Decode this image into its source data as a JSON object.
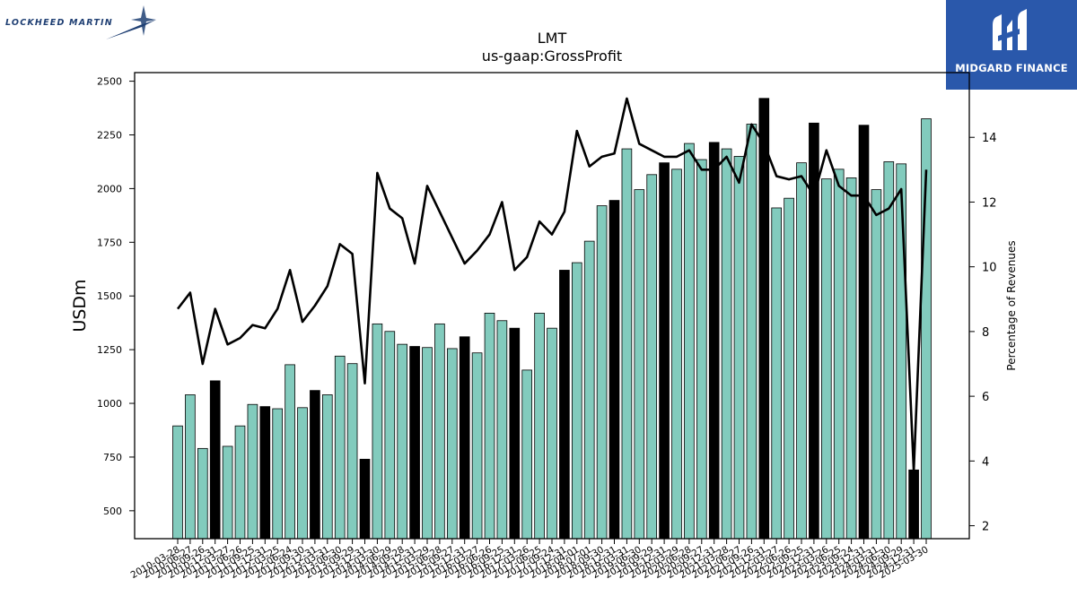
{
  "branding": {
    "company_logo_text": "LOCKHEED MARTIN",
    "publisher_logo_text": "MIDGARD FINANCE",
    "publisher_bg": "#2a58ab"
  },
  "colors": {
    "bar_default": "#82cbbd",
    "bar_highlight": "#000000",
    "line": "#000000"
  },
  "chart_data": {
    "type": "bar",
    "title": "LMT",
    "subtitle": "us-gaap:GrossProfit",
    "ylabel": "USDm",
    "y2label": "Percentage of Revenues",
    "ylim": [
      370,
      2540
    ],
    "y2lim": [
      1.6,
      16.0
    ],
    "yticks": [
      500,
      750,
      1000,
      1250,
      1500,
      1750,
      2000,
      2250,
      2500
    ],
    "y2ticks": [
      2,
      4,
      6,
      8,
      10,
      12,
      14
    ],
    "grid": false,
    "categories": [
      "2010-03-28",
      "2010-06-27",
      "2010-09-26",
      "2010-12-31",
      "2011-03-27",
      "2011-06-26",
      "2011-09-25",
      "2011-12-31",
      "2012-03-25",
      "2012-06-24",
      "2012-09-30",
      "2012-12-31",
      "2013-03-31",
      "2013-06-30",
      "2013-09-29",
      "2013-12-31",
      "2014-03-30",
      "2014-06-29",
      "2014-09-28",
      "2014-12-31",
      "2015-03-29",
      "2015-06-28",
      "2015-09-27",
      "2015-12-31",
      "2016-03-27",
      "2016-06-26",
      "2016-09-25",
      "2016-12-31",
      "2017-03-26",
      "2017-06-25",
      "2017-09-24",
      "2017-12-31",
      "2018-04-01",
      "2018-07-01",
      "2018-09-30",
      "2018-12-31",
      "2019-03-31",
      "2019-06-30",
      "2019-09-29",
      "2019-12-31",
      "2020-03-29",
      "2020-06-28",
      "2020-09-27",
      "2020-12-31",
      "2021-03-28",
      "2021-06-27",
      "2021-09-26",
      "2021-12-31",
      "2022-03-27",
      "2022-06-26",
      "2022-09-25",
      "2022-12-31",
      "2023-03-26",
      "2023-06-25",
      "2023-09-24",
      "2023-12-31",
      "2024-03-31",
      "2024-06-30",
      "2024-09-29",
      "2024-12-31",
      "2025-03-30"
    ],
    "series": [
      {
        "kind": "bar",
        "values": [
          895,
          1040,
          790,
          1105,
          800,
          895,
          995,
          985,
          975,
          1180,
          980,
          1060,
          1040,
          1220,
          1185,
          740,
          1370,
          1335,
          1275,
          1265,
          1260,
          1370,
          1255,
          1310,
          1235,
          1420,
          1385,
          1350,
          1155,
          1420,
          1350,
          1620,
          1655,
          1755,
          1920,
          1945,
          2185,
          1995,
          2065,
          2120,
          2090,
          2210,
          2135,
          2215,
          2185,
          2150,
          2300,
          2420,
          1910,
          1955,
          2120,
          2305,
          2045,
          2090,
          2050,
          2295,
          1995,
          2125,
          2115,
          690,
          2325
        ],
        "highlight": [
          false,
          false,
          false,
          true,
          false,
          false,
          false,
          true,
          false,
          false,
          false,
          true,
          false,
          false,
          false,
          true,
          false,
          false,
          false,
          true,
          false,
          false,
          false,
          true,
          false,
          false,
          false,
          true,
          false,
          false,
          false,
          true,
          false,
          false,
          false,
          true,
          false,
          false,
          false,
          true,
          false,
          false,
          false,
          true,
          false,
          false,
          false,
          true,
          false,
          false,
          false,
          true,
          false,
          false,
          false,
          true,
          false,
          false,
          false,
          true,
          false
        ]
      },
      {
        "kind": "line",
        "axis": "right",
        "values": [
          8.7,
          9.2,
          7.0,
          8.7,
          7.6,
          7.8,
          8.2,
          8.1,
          8.7,
          9.9,
          8.3,
          8.8,
          9.4,
          10.7,
          10.4,
          6.4,
          12.9,
          11.8,
          11.5,
          10.1,
          12.5,
          11.7,
          10.9,
          10.1,
          10.5,
          11.0,
          12.0,
          9.9,
          10.3,
          11.4,
          11.0,
          11.7,
          14.2,
          13.1,
          13.4,
          13.5,
          15.2,
          13.8,
          13.6,
          13.4,
          13.4,
          13.6,
          13.0,
          13.0,
          13.4,
          12.6,
          14.4,
          13.8,
          12.8,
          12.7,
          12.8,
          12.2,
          13.6,
          12.5,
          12.2,
          12.2,
          11.6,
          11.8,
          12.4,
          3.7,
          13.0
        ]
      }
    ]
  }
}
